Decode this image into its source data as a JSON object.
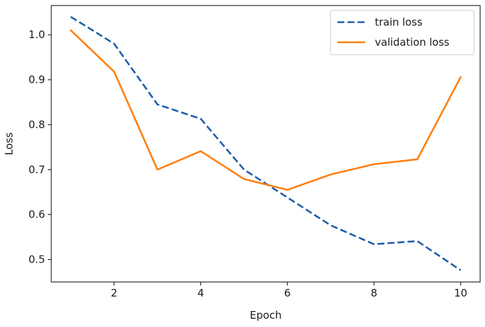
{
  "chart_data": {
    "type": "line",
    "title": "",
    "xlabel": "Epoch",
    "ylabel": "Loss",
    "xlim": [
      0.55,
      10.45
    ],
    "ylim": [
      0.45,
      1.065
    ],
    "x_ticks": [
      2,
      4,
      6,
      8,
      10
    ],
    "y_ticks": [
      0.5,
      0.6,
      0.7,
      0.8,
      0.9,
      1.0
    ],
    "x_tick_labels": [
      "2",
      "4",
      "6",
      "8",
      "10"
    ],
    "y_tick_labels": [
      "0.5",
      "0.6",
      "0.7",
      "0.8",
      "0.9",
      "1.0"
    ],
    "grid": false,
    "legend_position": "top-right",
    "x": [
      1,
      2,
      3,
      4,
      5,
      6,
      7,
      8,
      9,
      10
    ],
    "series": [
      {
        "name": "train loss",
        "color": "#1f5fa8",
        "style": "dashed",
        "values": [
          1.04,
          0.98,
          0.845,
          0.813,
          0.7,
          0.638,
          0.576,
          0.534,
          0.541,
          0.476
        ]
      },
      {
        "name": "validation loss",
        "color": "#ff7f0e",
        "style": "solid",
        "values": [
          1.01,
          0.918,
          0.7,
          0.741,
          0.679,
          0.655,
          0.689,
          0.712,
          0.723,
          0.906
        ]
      }
    ]
  }
}
